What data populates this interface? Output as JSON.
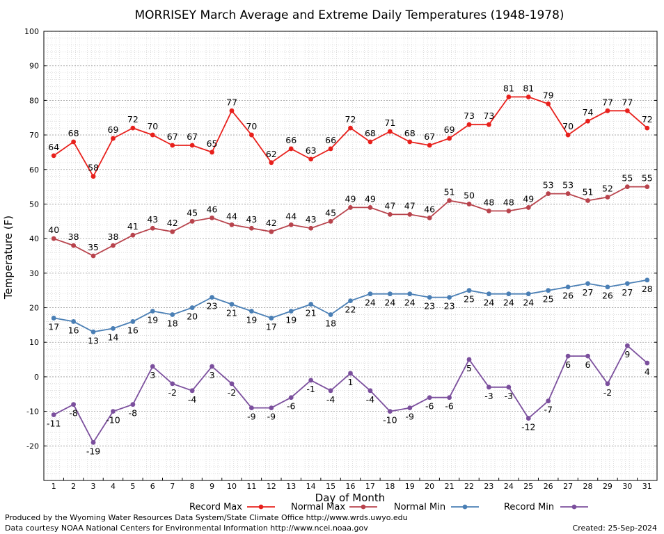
{
  "chart_data": {
    "type": "line",
    "title": "MORRISEY March Average and Extreme Daily Temperatures (1948-1978)",
    "xlabel": "Day of Month",
    "ylabel": "Temperature (F)",
    "ylim": [
      -30,
      100
    ],
    "yticks": [
      -20,
      -10,
      0,
      10,
      20,
      30,
      40,
      50,
      60,
      70,
      80,
      90,
      100
    ],
    "x": [
      1,
      2,
      3,
      4,
      5,
      6,
      7,
      8,
      9,
      10,
      11,
      12,
      13,
      14,
      15,
      16,
      17,
      18,
      19,
      20,
      21,
      22,
      23,
      24,
      25,
      26,
      27,
      28,
      29,
      30,
      31
    ],
    "grid": true,
    "legend_position": "bottom",
    "series": [
      {
        "name": "Record Max",
        "color": "#e8201c",
        "label_position": "above",
        "values": [
          64,
          68,
          58,
          69,
          72,
          70,
          67,
          67,
          65,
          77,
          70,
          62,
          66,
          63,
          66,
          72,
          68,
          71,
          68,
          67,
          69,
          73,
          73,
          81,
          81,
          79,
          70,
          74,
          77,
          77,
          72
        ]
      },
      {
        "name": "Normal Max",
        "color": "#b8434c",
        "label_position": "above",
        "values": [
          40,
          38,
          35,
          38,
          41,
          43,
          42,
          45,
          46,
          44,
          43,
          42,
          44,
          43,
          45,
          49,
          49,
          47,
          47,
          46,
          51,
          50,
          48,
          48,
          49,
          53,
          53,
          51,
          52,
          55,
          55
        ]
      },
      {
        "name": "Normal Min",
        "color": "#4a7fb5",
        "label_position": "below",
        "values": [
          17,
          16,
          13,
          14,
          16,
          19,
          18,
          20,
          23,
          21,
          19,
          17,
          19,
          21,
          18,
          22,
          24,
          24,
          24,
          23,
          23,
          25,
          24,
          24,
          24,
          25,
          26,
          27,
          26,
          27,
          28
        ]
      },
      {
        "name": "Record Min",
        "color": "#7b4f9d",
        "label_position": "below",
        "values": [
          -11,
          -8,
          -19,
          -10,
          -8,
          3,
          -2,
          -4,
          3,
          -2,
          -9,
          -9,
          -6,
          -1,
          -4,
          1,
          -4,
          -10,
          -9,
          -6,
          -6,
          5,
          -3,
          -3,
          -12,
          -7,
          6,
          6,
          -2,
          9,
          4
        ]
      }
    ]
  },
  "footer": {
    "produced_by": "Produced by the Wyoming Water Resources Data System/State Climate Office http://www.wrds.uwyo.edu",
    "courtesy": "Data courtesy NOAA National Centers for Environmental Information http://www.ncei.noaa.gov",
    "created": "Created:  25-Sep-2024"
  }
}
